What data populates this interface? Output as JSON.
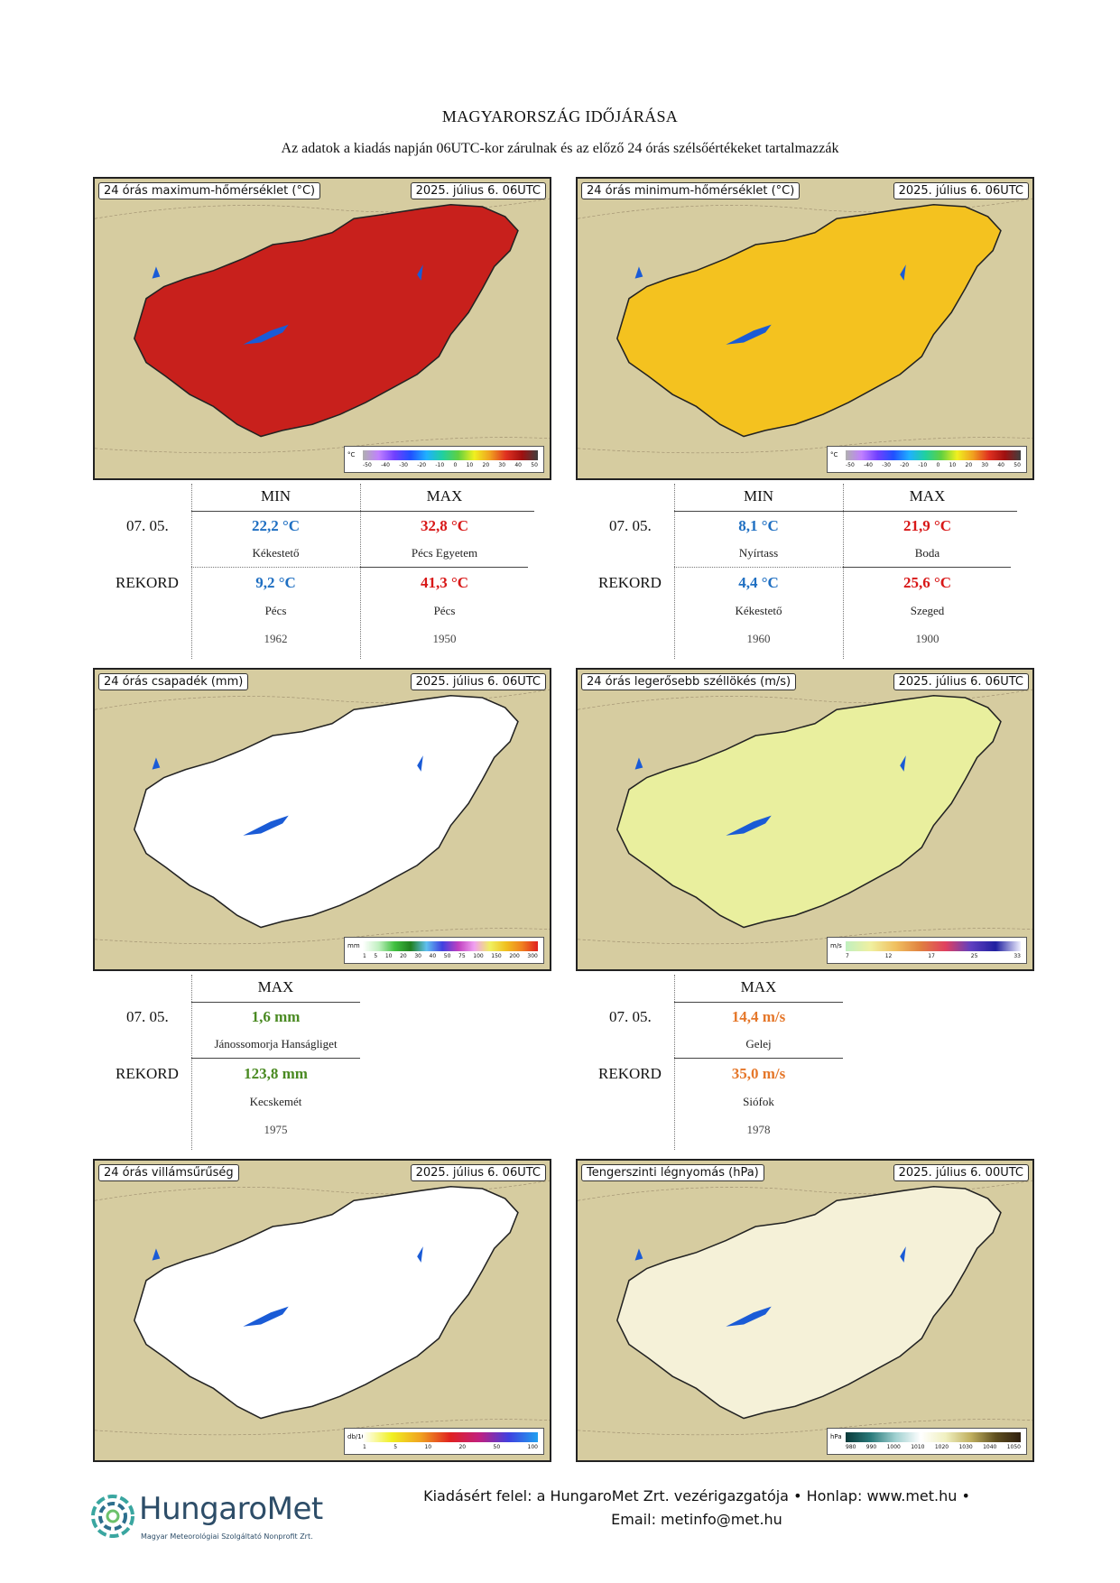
{
  "header": {
    "title": "MAGYARORSZÁG IDŐJÁRÁSA",
    "subtitle": "Az adatok a kiadás napján 06UTC-kor zárulnak és az előző 24 órás szélsőértékeket tartalmazzák"
  },
  "maps": {
    "tmax": {
      "title": "24 órás maximum-hőmérséklet (°C)",
      "date": "2025. július 6. 06UTC",
      "fill": "#c8201c",
      "legend": {
        "unit": "°C",
        "ticks": [
          "-50",
          "-40",
          "-30",
          "-20",
          "-10",
          "0",
          "10",
          "20",
          "30",
          "40",
          "50"
        ]
      }
    },
    "tmin": {
      "title": "24 órás minimum-hőmérséklet (°C)",
      "date": "2025. július 6. 06UTC",
      "fill": "#f4c21f",
      "legend": {
        "unit": "°C",
        "ticks": [
          "-50",
          "-40",
          "-30",
          "-20",
          "-10",
          "0",
          "10",
          "20",
          "30",
          "40",
          "50"
        ]
      }
    },
    "precip": {
      "title": "24 órás csapadék (mm)",
      "date": "2025. július 6. 06UTC",
      "fill": "#ffffff",
      "legend": {
        "unit": "mm",
        "ticks": [
          "1",
          "5",
          "10",
          "20",
          "30",
          "40",
          "50",
          "75",
          "100",
          "150",
          "200",
          "300"
        ]
      }
    },
    "gust": {
      "title": "24 órás legerősebb széllökés (m/s)",
      "date": "2025. július 6. 06UTC",
      "fill": "#e9ef9e",
      "legend": {
        "unit": "m/s",
        "ticks": [
          "7",
          "12",
          "17",
          "25",
          "33"
        ]
      }
    },
    "lightning": {
      "title": "24 órás villámsűrűség",
      "date": "2025. július 6. 06UTC",
      "fill": "#ffffff",
      "legend": {
        "unit": "db/10km2",
        "ticks": [
          "1",
          "5",
          "10",
          "20",
          "50",
          "100"
        ]
      }
    },
    "pressure": {
      "title": "Tengerszinti légnyomás (hPa)",
      "date": "2025. július 6. 00UTC",
      "fill": "#f5f1d8",
      "legend": {
        "unit": "hPa",
        "ticks": [
          "980",
          "990",
          "1000",
          "1010",
          "1020",
          "1030",
          "1040",
          "1050"
        ]
      }
    }
  },
  "tables": {
    "tmax": {
      "headers": {
        "min": "MIN",
        "max": "MAX"
      },
      "today": {
        "label": "07. 05.",
        "min_val": "22,2 °C",
        "min_loc": "Kékestető",
        "max_val": "32,8 °C",
        "max_loc": "Pécs Egyetem"
      },
      "record": {
        "label": "REKORD",
        "min_val": "9,2 °C",
        "min_loc": "Pécs",
        "min_year": "1962",
        "max_val": "41,3 °C",
        "max_loc": "Pécs",
        "max_year": "1950"
      }
    },
    "tmin": {
      "headers": {
        "min": "MIN",
        "max": "MAX"
      },
      "today": {
        "label": "07. 05.",
        "min_val": "8,1 °C",
        "min_loc": "Nyírtass",
        "max_val": "21,9 °C",
        "max_loc": "Boda"
      },
      "record": {
        "label": "REKORD",
        "min_val": "4,4 °C",
        "min_loc": "Kékestető",
        "min_year": "1960",
        "max_val": "25,6 °C",
        "max_loc": "Szeged",
        "max_year": "1900"
      }
    },
    "precip": {
      "headers": {
        "max": "MAX"
      },
      "today": {
        "label": "07. 05.",
        "max_val": "1,6 mm",
        "max_loc": "Jánossomorja Hanságliget"
      },
      "record": {
        "label": "REKORD",
        "max_val": "123,8 mm",
        "max_loc": "Kecskemét",
        "max_year": "1975"
      }
    },
    "gust": {
      "headers": {
        "max": "MAX"
      },
      "today": {
        "label": "07. 05.",
        "max_val": "14,4 m/s",
        "max_loc": "Gelej"
      },
      "record": {
        "label": "REKORD",
        "max_val": "35,0 m/s",
        "max_loc": "Siófok",
        "max_year": "1978"
      }
    }
  },
  "footer": {
    "line1": "Kiadásért felel: a HungaroMet Zrt. vezérigazgatója • Honlap: www.met.hu •",
    "line2": "Email: metinfo@met.hu",
    "logo_name": "HungaroMet",
    "logo_tagline": "Magyar Meteorológiai Szolgáltató Nonprofit Zrt."
  }
}
